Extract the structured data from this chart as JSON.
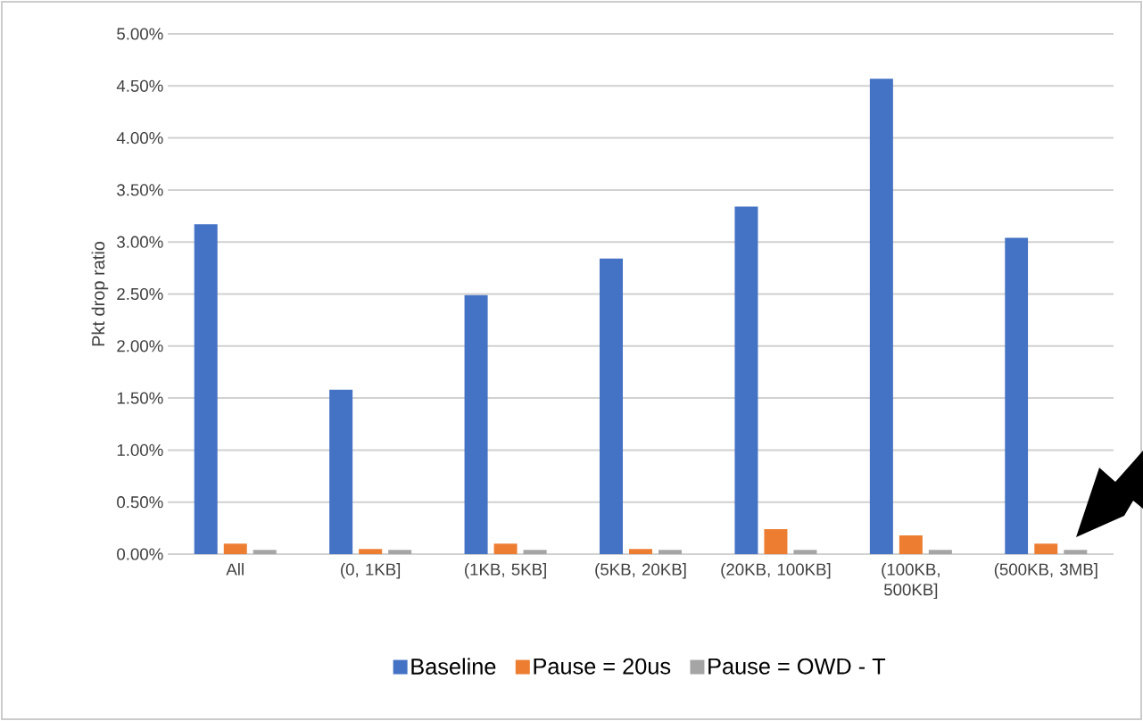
{
  "chart_data": {
    "type": "bar",
    "ylabel": "Pkt drop ratio",
    "categories": [
      "All",
      "(0, 1KB]",
      "(1KB, 5KB]",
      "(5KB, 20KB]",
      "(20KB, 100KB]",
      "(100KB, 500KB]",
      "(500KB, 3MB]"
    ],
    "series": [
      {
        "name": "Baseline",
        "color": "#4472c4",
        "values": [
          3.17,
          1.58,
          2.49,
          2.84,
          3.34,
          4.57,
          3.04
        ]
      },
      {
        "name": "Pause = 20us",
        "color": "#ed7d31",
        "values": [
          0.1,
          0.05,
          0.1,
          0.05,
          0.24,
          0.18,
          0.1
        ]
      },
      {
        "name": "Pause = OWD - T",
        "color": "#a5a5a5",
        "values": [
          0.04,
          0.04,
          0.04,
          0.04,
          0.04,
          0.04,
          0.04
        ]
      }
    ],
    "ylim": [
      0,
      5
    ],
    "yticks": [
      {
        "value": 0,
        "label": "0.00%"
      },
      {
        "value": 0.5,
        "label": "0.50%"
      },
      {
        "value": 1,
        "label": "1.00%"
      },
      {
        "value": 1.5,
        "label": "1.50%"
      },
      {
        "value": 2,
        "label": "2.00%"
      },
      {
        "value": 2.5,
        "label": "2.50%"
      },
      {
        "value": 3,
        "label": "3.00%"
      },
      {
        "value": 3.5,
        "label": "3.50%"
      },
      {
        "value": 4,
        "label": "4.00%"
      },
      {
        "value": 4.5,
        "label": "4.50%"
      },
      {
        "value": 5,
        "label": "5.00%"
      }
    ],
    "grid": "y",
    "legend": "bottom"
  }
}
